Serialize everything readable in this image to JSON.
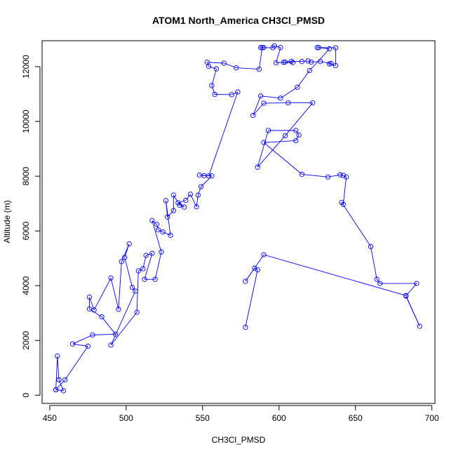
{
  "chart_data": {
    "type": "line",
    "title": "ATOM1 North_America CH3Cl_PMSD",
    "xlabel": "CH3Cl_PMSD",
    "ylabel": "Altitude (m)",
    "xlim": [
      445,
      702
    ],
    "ylim": [
      -300,
      12950
    ],
    "x_ticks": [
      450,
      500,
      550,
      600,
      650,
      700
    ],
    "y_ticks": [
      0,
      2000,
      4000,
      6000,
      8000,
      10000,
      12000
    ],
    "grid": false,
    "legend": "none",
    "markers": "open-circle",
    "color": "#0000ff",
    "series": [
      {
        "x": [
          454,
          459,
          456,
          456,
          455,
          454,
          460,
          475,
          465,
          478,
          493,
          484,
          476,
          476,
          479,
          490,
          495,
          497,
          502,
          499,
          504,
          506,
          490,
          507,
          508,
          511,
          513,
          517,
          512,
          519,
          523,
          517,
          520,
          521,
          524,
          529,
          526,
          527,
          531,
          531,
          535,
          538,
          534,
          539,
          542,
          546,
          547,
          549,
          556,
          548,
          551,
          554,
          573,
          569,
          558,
          556,
          559,
          554,
          553,
          564,
          572,
          587,
          589,
          588,
          590,
          596,
          597,
          601,
          598,
          604,
          609,
          603,
          608,
          615,
          619,
          621,
          627,
          634,
          633,
          637,
          637,
          625,
          626,
          633,
          620,
          612,
          601,
          588,
          583,
          590,
          606,
          622,
          604,
          586,
          593,
          611,
          613,
          611,
          590,
          615,
          632,
          640,
          642,
          644,
          642,
          641,
          660,
          664,
          666,
          690,
          683,
          692,
          683,
          590,
          578,
          584,
          586,
          578
        ],
        "y": [
          200,
          160,
          560,
          560,
          1430,
          200,
          560,
          1790,
          1870,
          2200,
          2230,
          2860,
          3150,
          3580,
          3110,
          4280,
          3140,
          4880,
          5530,
          5030,
          3940,
          3800,
          1830,
          3030,
          4540,
          4620,
          5110,
          5180,
          4230,
          4230,
          5230,
          6380,
          6240,
          6040,
          5960,
          5840,
          7110,
          6510,
          6740,
          7310,
          6940,
          6870,
          7030,
          7120,
          7340,
          6880,
          7310,
          7620,
          8010,
          8040,
          8020,
          8010,
          11080,
          10980,
          10990,
          11310,
          11920,
          12010,
          12160,
          12130,
          11960,
          11910,
          12700,
          12700,
          12700,
          12690,
          12760,
          12700,
          12140,
          12170,
          12150,
          12160,
          12200,
          12190,
          12210,
          12170,
          12190,
          12120,
          12100,
          12040,
          12690,
          12700,
          12700,
          12650,
          11860,
          11250,
          10850,
          10930,
          10220,
          10670,
          10680,
          10680,
          9480,
          8330,
          9670,
          9670,
          9500,
          9300,
          9230,
          8070,
          7970,
          8050,
          8030,
          7970,
          6970,
          7040,
          5430,
          4230,
          4080,
          4080,
          3620,
          2520,
          3640,
          5130,
          4160,
          4640,
          4580,
          2480
        ]
      }
    ]
  }
}
